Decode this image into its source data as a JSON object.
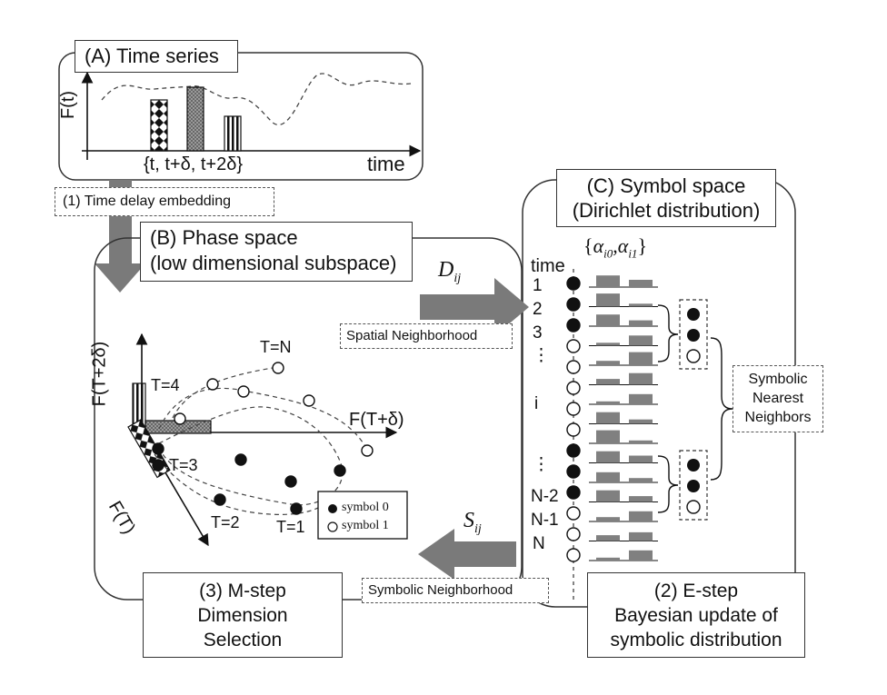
{
  "panel_a": {
    "title": "(A) Time series",
    "y_axis": "F(t)",
    "x_axis": "time",
    "times": "{t, t+δ, t+2δ}"
  },
  "step1": {
    "label": "(1) Time delay embedding"
  },
  "panel_b": {
    "title_line1": "(B) Phase space",
    "title_line2": "(low dimensional subspace)",
    "axis_y": "F(T+2δ)",
    "axis_x": "F(T+δ)",
    "axis_z": "F(T)",
    "t_labels": [
      "T=N",
      "T=4",
      "T=3",
      "T=2",
      "T=1"
    ],
    "legend": [
      "symbol 0",
      "symbol 1"
    ]
  },
  "dij": {
    "sym": "D",
    "sub": "ij"
  },
  "spatial": {
    "label": "Spatial Neighborhood"
  },
  "panel_c": {
    "title_line1": "(C) Symbol space",
    "title_line2": "(Dirichlet distribution)",
    "alpha_open": "{",
    "alpha_close": "}",
    "alpha0": "α",
    "alpha0_sub": "i0",
    "alpha1": "α",
    "alpha1_sub": "i1",
    "time_header": "time",
    "row_labels": [
      "1",
      "2",
      "3",
      "⋮",
      "i",
      "⋮",
      "N-2",
      "N-1",
      "N"
    ],
    "snn_line1": "Symbolic",
    "snn_line2": "Nearest",
    "snn_line3": "Neighbors"
  },
  "sij": {
    "sym": "S",
    "sub": "ij"
  },
  "symbolic_nb": {
    "label": "Symbolic Neighborhood"
  },
  "step3": {
    "line1": "(3) M-step",
    "line2": "Dimension",
    "line3": "Selection"
  },
  "step2": {
    "line1": "(2) E-step",
    "line2": "Bayesian update of",
    "line3": "symbolic distribution"
  },
  "colors": {
    "ink": "#111111",
    "arrow": "#7a7a7a",
    "bar": "#808080"
  },
  "symbol_column": [
    0,
    0,
    0,
    1,
    1,
    1,
    1,
    1,
    0,
    0,
    0,
    1,
    1,
    1
  ],
  "bar_pairs": [
    [
      0.8,
      0.5
    ],
    [
      0.9,
      0.2
    ],
    [
      0.8,
      0.4
    ],
    [
      0.2,
      0.7
    ],
    [
      0.3,
      0.9
    ],
    [
      0.4,
      0.8
    ],
    [
      0.2,
      0.7
    ],
    [
      0.8,
      0.3
    ],
    [
      0.9,
      0.2
    ],
    [
      0.8,
      0.5
    ],
    [
      0.7,
      0.3
    ],
    [
      0.8,
      0.4
    ],
    [
      0.3,
      0.7
    ],
    [
      0.4,
      0.6
    ],
    [
      0.2,
      0.7
    ]
  ]
}
